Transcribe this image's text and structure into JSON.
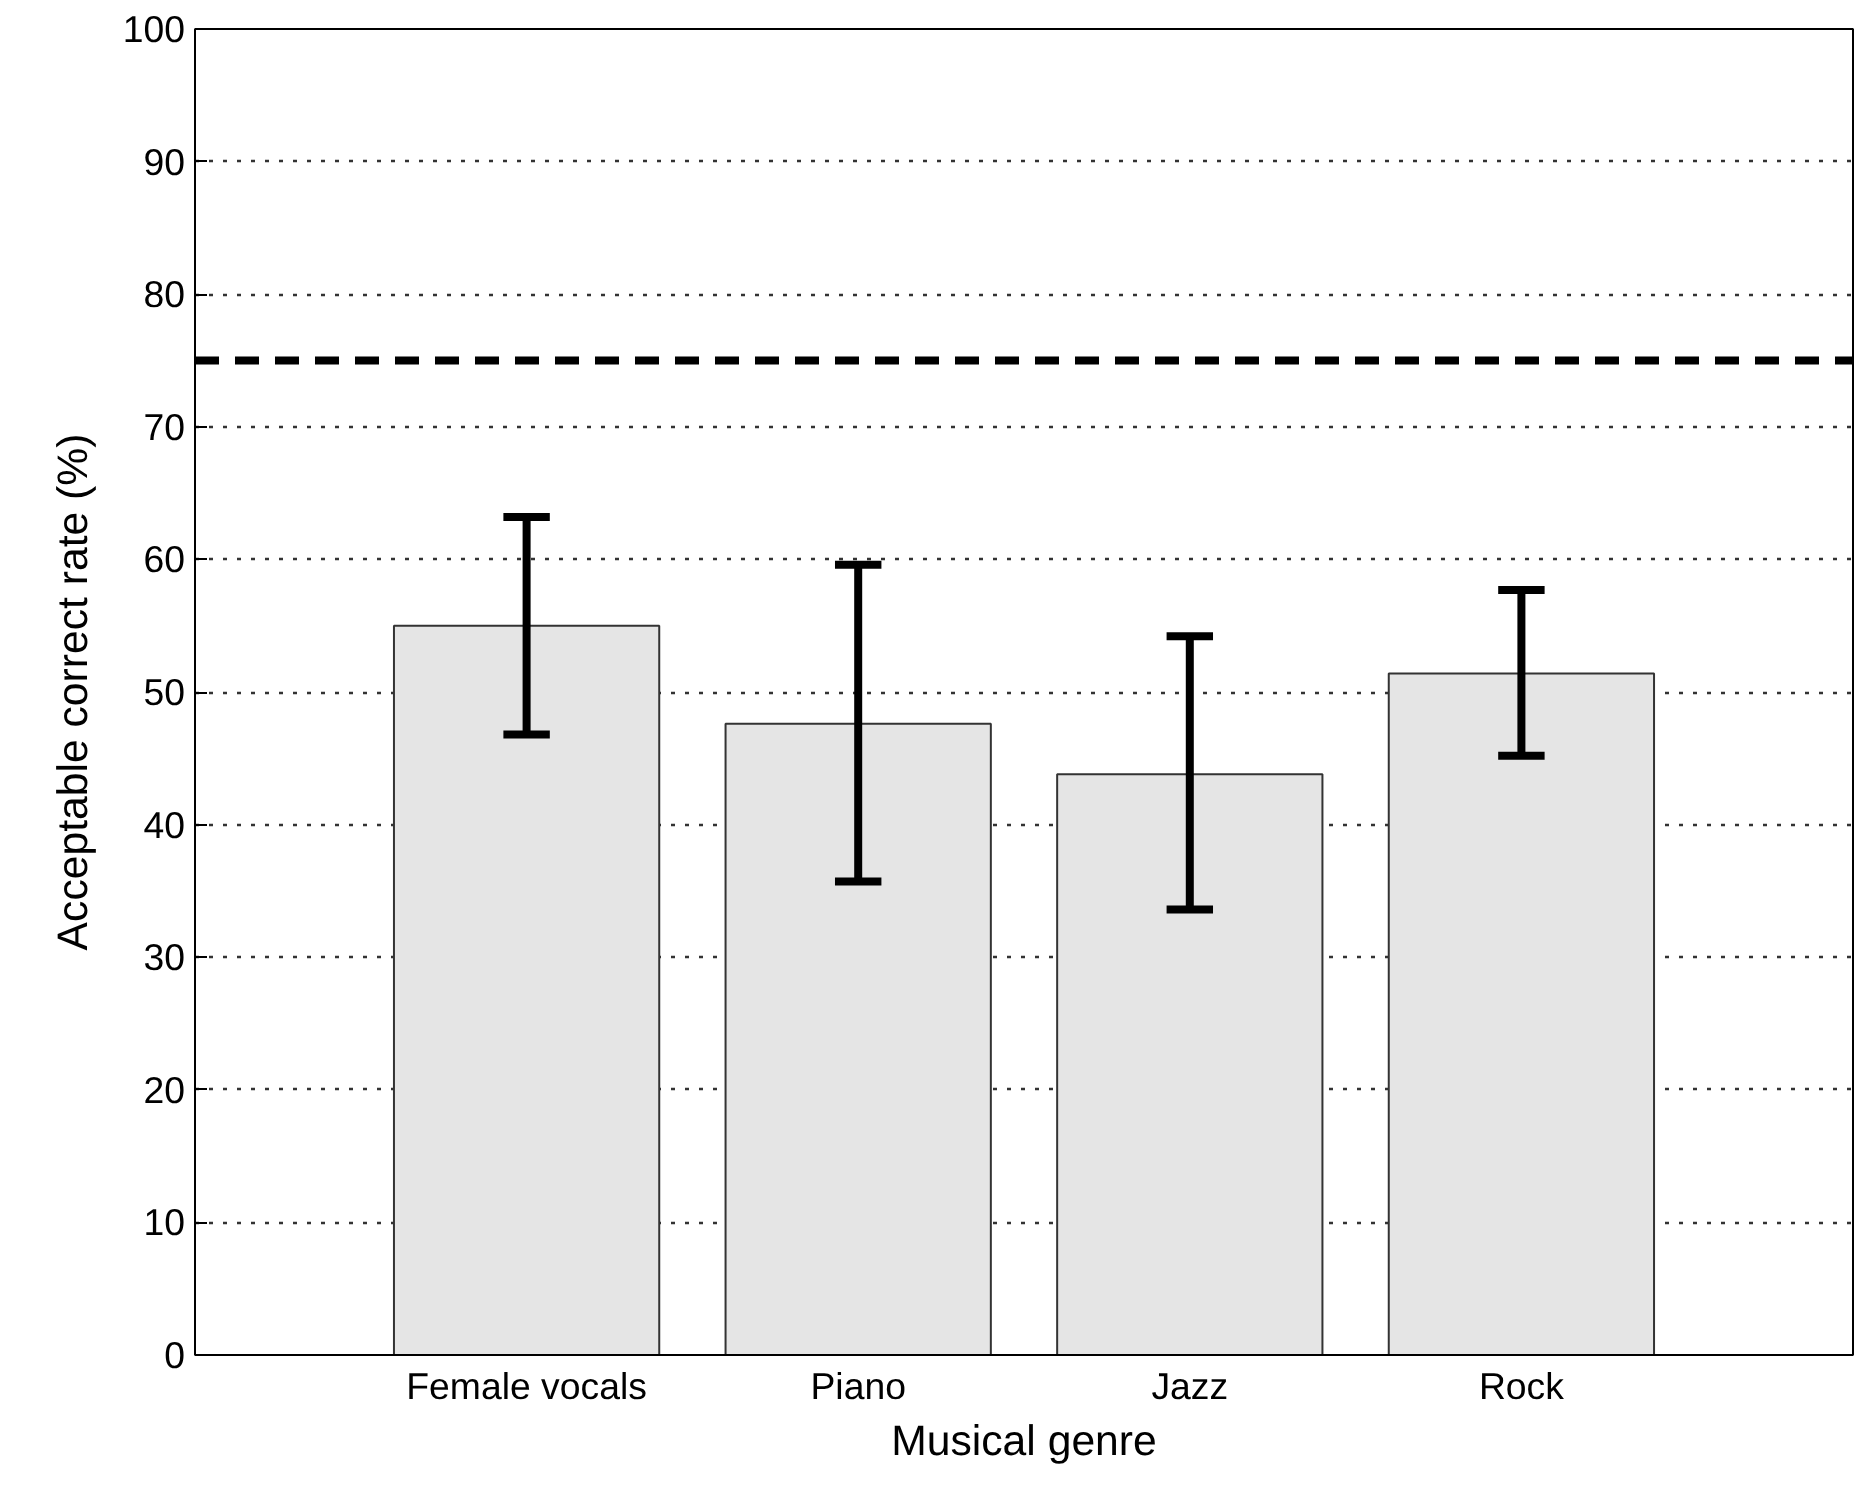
{
  "chart_data": {
    "type": "bar",
    "xlabel": "Musical genre",
    "ylabel": "Acceptable correct rate (%)",
    "categories": [
      "Female vocals",
      "Piano",
      "Jazz",
      "Rock"
    ],
    "values": [
      55.0,
      47.6,
      43.8,
      51.4
    ],
    "errors": [
      [
        46.8,
        63.2
      ],
      [
        35.7,
        59.6
      ],
      [
        33.6,
        54.2
      ],
      [
        45.2,
        57.7
      ]
    ],
    "color": "#e5e5e5",
    "ylim": [
      0,
      100
    ],
    "yticks": [
      0,
      10,
      20,
      30,
      40,
      50,
      60,
      70,
      80,
      90,
      100
    ],
    "grid": "y",
    "ref_lines": [
      {
        "axis": "y",
        "value": 75,
        "label": null,
        "color": "#000000",
        "line_style": "dashed"
      }
    ]
  }
}
